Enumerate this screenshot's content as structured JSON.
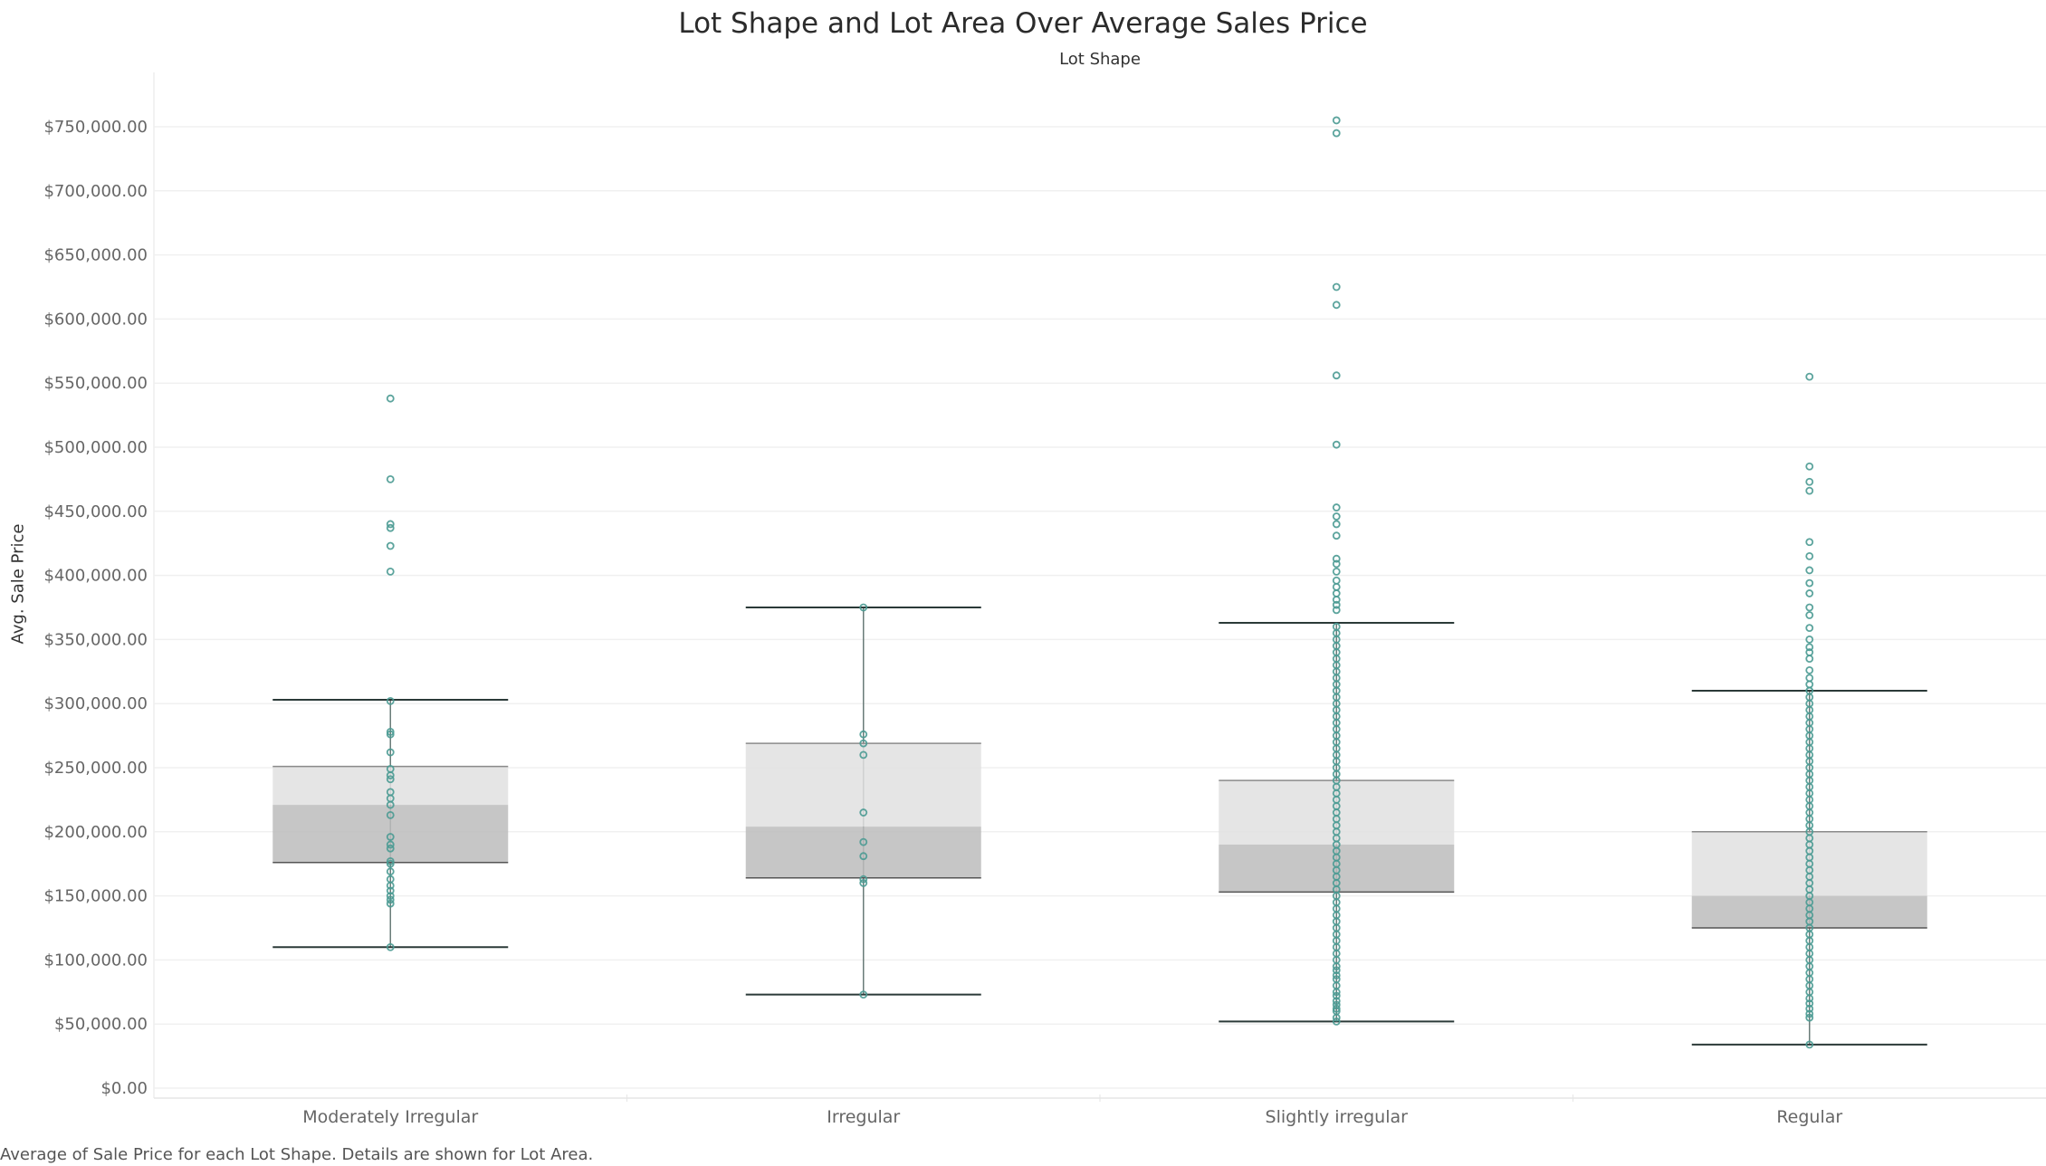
{
  "chart_data": {
    "type": "box",
    "title": "Lot Shape and Lot Area Over Average Sales Price",
    "column_header": "Lot Shape",
    "ylabel": "Avg. Sale Price",
    "caption": "Average of Sale Price for each Lot Shape.  Details are shown for Lot Area.",
    "ylim": [
      0,
      760000
    ],
    "yticks": [
      0,
      50000,
      100000,
      150000,
      200000,
      250000,
      300000,
      350000,
      400000,
      450000,
      500000,
      550000,
      600000,
      650000,
      700000,
      750000
    ],
    "ytick_labels": [
      "$0.00",
      "$50,000.00",
      "$100,000.00",
      "$150,000.00",
      "$200,000.00",
      "$250,000.00",
      "$300,000.00",
      "$350,000.00",
      "$400,000.00",
      "$450,000.00",
      "$500,000.00",
      "$550,000.00",
      "$600,000.00",
      "$650,000.00",
      "$700,000.00",
      "$750,000.00"
    ],
    "grid": true,
    "colors": {
      "point": "#4a9a92",
      "box_upper": "#e0e0e0",
      "box_lower": "#bcbcbc",
      "whisker": "#2b3a38",
      "grid": "#f0f0f0"
    },
    "categories": [
      {
        "name": "Moderately Irregular",
        "whisker_low": 110000,
        "q1": 176000,
        "median": 221000,
        "q3": 251000,
        "whisker_high": 303000,
        "points": [
          110000,
          144000,
          147000,
          150000,
          154000,
          158000,
          163000,
          169000,
          175000,
          177000,
          187000,
          190000,
          196000,
          213000,
          221000,
          226000,
          231000,
          241000,
          244000,
          249000,
          262000,
          276000,
          278000,
          302000,
          403000,
          423000,
          437000,
          440000,
          475000,
          538000
        ]
      },
      {
        "name": "Irregular",
        "whisker_low": 73000,
        "q1": 164000,
        "median": 204000,
        "q3": 269000,
        "whisker_high": 375000,
        "points": [
          73000,
          160000,
          163000,
          181000,
          192000,
          215000,
          260000,
          269000,
          276000,
          375000
        ]
      },
      {
        "name": "Slightly irregular",
        "whisker_low": 52000,
        "q1": 153000,
        "median": 190000,
        "q3": 240000,
        "whisker_high": 363000,
        "points": [
          52000,
          55000,
          60000,
          62000,
          65000,
          68000,
          72000,
          75000,
          80000,
          85000,
          88000,
          92000,
          95000,
          100000,
          105000,
          110000,
          115000,
          120000,
          125000,
          130000,
          135000,
          140000,
          145000,
          150000,
          155000,
          160000,
          165000,
          170000,
          175000,
          180000,
          185000,
          190000,
          195000,
          200000,
          205000,
          210000,
          215000,
          220000,
          225000,
          230000,
          235000,
          240000,
          245000,
          250000,
          255000,
          260000,
          265000,
          270000,
          275000,
          280000,
          285000,
          290000,
          295000,
          300000,
          305000,
          310000,
          315000,
          320000,
          325000,
          330000,
          335000,
          340000,
          345000,
          350000,
          355000,
          360000,
          373000,
          377000,
          381000,
          386000,
          391000,
          396000,
          403000,
          409000,
          413000,
          431000,
          440000,
          446000,
          453000,
          502000,
          556000,
          611000,
          625000,
          745000,
          755000
        ]
      },
      {
        "name": "Regular",
        "whisker_low": 34000,
        "q1": 125000,
        "median": 150000,
        "q3": 200000,
        "whisker_high": 310000,
        "points": [
          34000,
          55000,
          58000,
          62000,
          66000,
          70000,
          75000,
          80000,
          85000,
          90000,
          95000,
          100000,
          105000,
          110000,
          115000,
          120000,
          125000,
          130000,
          135000,
          140000,
          145000,
          150000,
          155000,
          160000,
          165000,
          170000,
          175000,
          180000,
          185000,
          190000,
          195000,
          200000,
          205000,
          210000,
          215000,
          220000,
          225000,
          230000,
          235000,
          240000,
          245000,
          250000,
          255000,
          260000,
          265000,
          270000,
          275000,
          280000,
          285000,
          290000,
          295000,
          300000,
          305000,
          310000,
          315000,
          320000,
          326000,
          335000,
          340000,
          344000,
          350000,
          359000,
          369000,
          375000,
          386000,
          394000,
          404000,
          415000,
          426000,
          466000,
          473000,
          485000,
          555000
        ]
      }
    ]
  }
}
